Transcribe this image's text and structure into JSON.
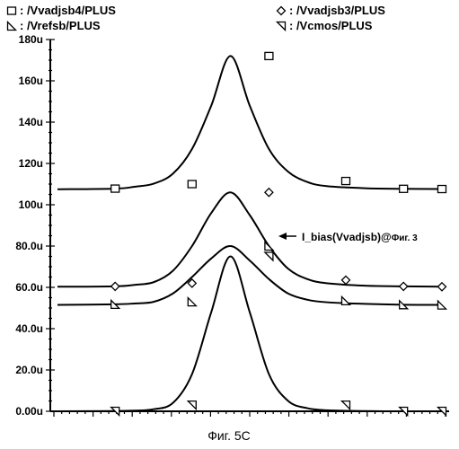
{
  "chart_data": {
    "type": "line",
    "caption": "Фиг. 5C",
    "annotation": {
      "text": "I_bias(Vvadjsb)@",
      "ref": "Фиг. 3",
      "points_to_series": "/Vvadjsb3/PLUS"
    },
    "x": [
      0.0,
      0.75,
      1.0,
      1.25,
      1.5,
      1.75,
      2.0,
      2.25,
      2.5,
      2.75,
      3.0,
      3.25,
      3.5,
      4.0,
      4.5,
      5.0
    ],
    "ylim": [
      0,
      180
    ],
    "y_unit": "u",
    "yticks": [
      "0.00u",
      "20.0u",
      "40.0u",
      "60.0u",
      "80.0u",
      "100u",
      "120u",
      "140u",
      "160u",
      "180u"
    ],
    "series": [
      {
        "name": "/Vvadjsb4/PLUS",
        "marker": "square",
        "values": [
          107.5,
          107.8,
          108.7,
          110.2,
          115,
          127,
          148,
          172,
          148,
          127,
          116,
          111,
          109,
          108,
          107.7,
          107.6
        ],
        "marker_points": [
          [
            0.75,
            107.8
          ],
          [
            1.75,
            110
          ],
          [
            2.75,
            172
          ],
          [
            3.75,
            111.5
          ],
          [
            4.5,
            107.7
          ],
          [
            5.0,
            107.6
          ]
        ]
      },
      {
        "name": "/Vvadjsb3/PLUS",
        "marker": "diamond",
        "values": [
          60.3,
          60.5,
          61.2,
          62.5,
          68,
          80,
          96,
          106,
          95,
          80,
          69,
          64,
          62,
          60.8,
          60.5,
          60.3
        ],
        "marker_points": [
          [
            0.75,
            60.5
          ],
          [
            1.75,
            62
          ],
          [
            2.75,
            106
          ],
          [
            3.75,
            63.5
          ],
          [
            4.5,
            60.5
          ],
          [
            5.0,
            60.3
          ]
        ]
      },
      {
        "name": "/Vrefsb/PLUS",
        "marker": "triangle-left",
        "values": [
          51.5,
          51.8,
          52.2,
          53,
          57,
          65,
          74,
          80,
          73,
          64,
          57,
          54,
          52.8,
          52,
          51.6,
          51.5
        ],
        "marker_points": [
          [
            0.75,
            51.8
          ],
          [
            1.75,
            53
          ],
          [
            2.75,
            80
          ],
          [
            3.75,
            53.5
          ],
          [
            4.5,
            51.6
          ],
          [
            5.0,
            51.5
          ]
        ]
      },
      {
        "name": "/Vcmos/PLUS",
        "marker": "triangle-down",
        "values": [
          0,
          0.1,
          0.3,
          1,
          4,
          18,
          48,
          75,
          48,
          18,
          5,
          1.5,
          0.5,
          0.1,
          0,
          0
        ],
        "marker_points": [
          [
            0.75,
            0
          ],
          [
            1.75,
            3
          ],
          [
            2.75,
            75
          ],
          [
            3.75,
            3
          ],
          [
            4.5,
            0
          ],
          [
            5.0,
            0
          ]
        ]
      }
    ]
  }
}
